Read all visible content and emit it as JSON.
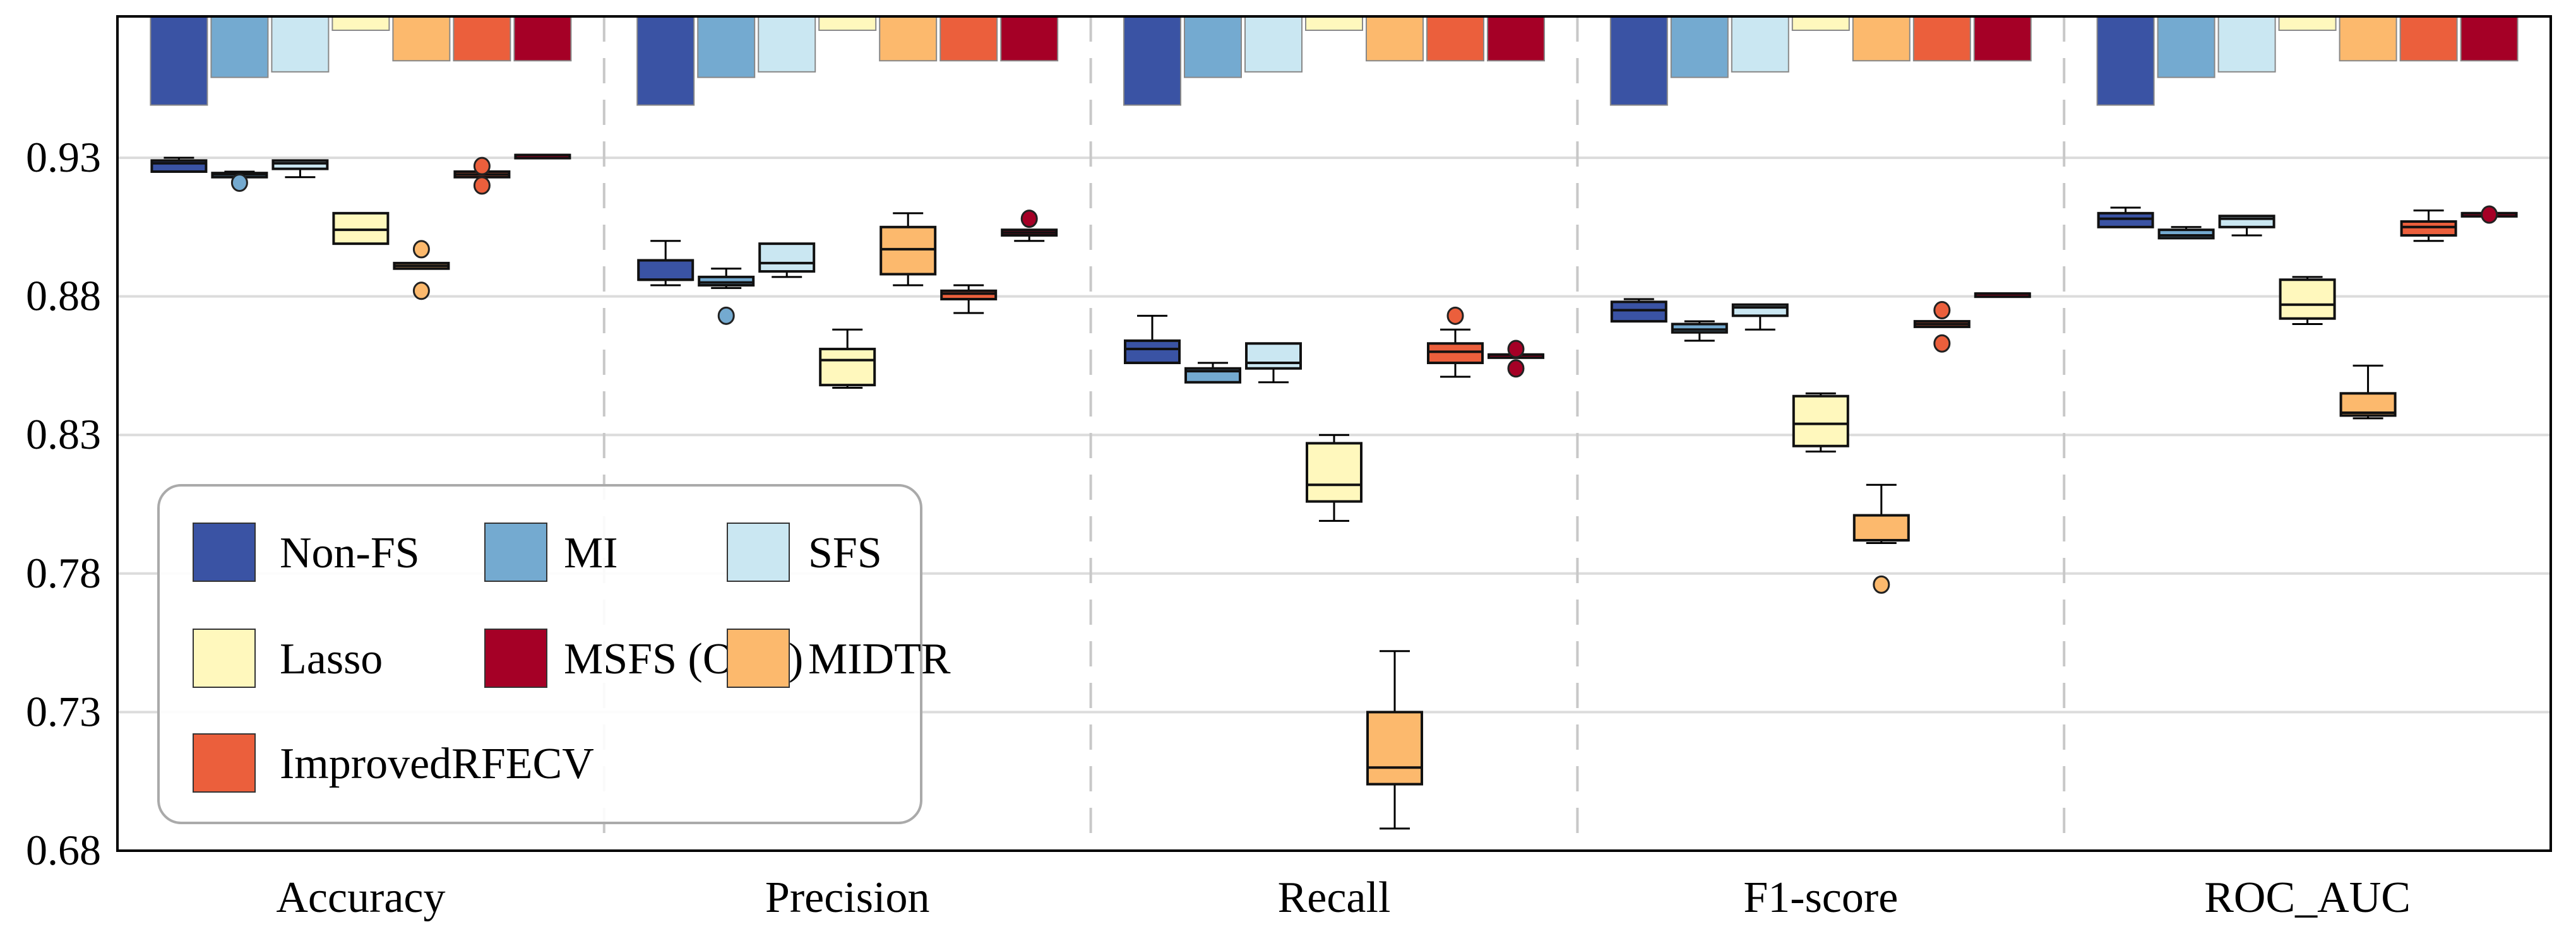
{
  "chart_data": {
    "type": "box",
    "title": "",
    "xlabel": "",
    "ylabel": "",
    "ylim": [
      0.68,
      0.981
    ],
    "yticks": [
      "0.68",
      "0.73",
      "0.78",
      "0.83",
      "0.88",
      "0.93"
    ],
    "grid": "horizontal",
    "legend_position": "bottom-left",
    "categories": [
      "Accuracy",
      "Precision",
      "Recall",
      "F1-score",
      "ROC_AUC"
    ],
    "methods": [
      {
        "name": "Non-FS",
        "color": "#3a53a4"
      },
      {
        "name": "MI",
        "color": "#74aad0"
      },
      {
        "name": "SFS",
        "color": "#cae7f2"
      },
      {
        "name": "Lasso",
        "color": "#fff8bd"
      },
      {
        "name": "MIDTR",
        "color": "#fcb96d"
      },
      {
        "name": "ImprovedRFECV",
        "color": "#eb5f3c"
      },
      {
        "name": "MSFS (Ours)",
        "color": "#a50026"
      }
    ],
    "legend_order": [
      0,
      1,
      2,
      3,
      6,
      4,
      5
    ],
    "top_bars_bottom_values": [
      0.949,
      0.959,
      0.961,
      0.976,
      0.965,
      0.965,
      0.965
    ],
    "boxes": [
      [
        {
          "min": 0.925,
          "q1": 0.925,
          "median": 0.928,
          "q3": 0.929,
          "max": 0.93,
          "outliers": []
        },
        {
          "min": 0.923,
          "q1": 0.923,
          "median": 0.924,
          "q3": 0.9245,
          "max": 0.925,
          "outliers": [
            0.921
          ]
        },
        {
          "min": 0.923,
          "q1": 0.926,
          "median": 0.928,
          "q3": 0.929,
          "max": 0.929,
          "outliers": []
        },
        {
          "min": 0.899,
          "q1": 0.899,
          "median": 0.904,
          "q3": 0.91,
          "max": 0.91,
          "outliers": []
        },
        {
          "min": 0.89,
          "q1": 0.89,
          "median": 0.891,
          "q3": 0.892,
          "max": 0.892,
          "outliers": [
            0.897,
            0.882
          ]
        },
        {
          "min": 0.923,
          "q1": 0.923,
          "median": 0.924,
          "q3": 0.925,
          "max": 0.925,
          "outliers": [
            0.927,
            0.92
          ]
        },
        {
          "min": 0.931,
          "q1": 0.931,
          "median": 0.931,
          "q3": 0.931,
          "max": 0.931,
          "outliers": []
        }
      ],
      [
        {
          "min": 0.884,
          "q1": 0.886,
          "median": 0.886,
          "q3": 0.893,
          "max": 0.9,
          "outliers": []
        },
        {
          "min": 0.883,
          "q1": 0.884,
          "median": 0.885,
          "q3": 0.887,
          "max": 0.89,
          "outliers": [
            0.873
          ]
        },
        {
          "min": 0.887,
          "q1": 0.889,
          "median": 0.892,
          "q3": 0.899,
          "max": 0.899,
          "outliers": []
        },
        {
          "min": 0.847,
          "q1": 0.848,
          "median": 0.857,
          "q3": 0.861,
          "max": 0.868,
          "outliers": []
        },
        {
          "min": 0.884,
          "q1": 0.888,
          "median": 0.897,
          "q3": 0.905,
          "max": 0.91,
          "outliers": []
        },
        {
          "min": 0.874,
          "q1": 0.879,
          "median": 0.881,
          "q3": 0.882,
          "max": 0.884,
          "outliers": []
        },
        {
          "min": 0.9,
          "q1": 0.902,
          "median": 0.903,
          "q3": 0.904,
          "max": 0.904,
          "outliers": [
            0.908
          ]
        }
      ],
      [
        {
          "min": 0.856,
          "q1": 0.856,
          "median": 0.861,
          "q3": 0.864,
          "max": 0.873,
          "outliers": []
        },
        {
          "min": 0.849,
          "q1": 0.849,
          "median": 0.853,
          "q3": 0.854,
          "max": 0.856,
          "outliers": []
        },
        {
          "min": 0.849,
          "q1": 0.854,
          "median": 0.856,
          "q3": 0.863,
          "max": 0.863,
          "outliers": []
        },
        {
          "min": 0.799,
          "q1": 0.806,
          "median": 0.812,
          "q3": 0.827,
          "max": 0.83,
          "outliers": []
        },
        {
          "min": 0.688,
          "q1": 0.704,
          "median": 0.71,
          "q3": 0.73,
          "max": 0.752,
          "outliers": []
        },
        {
          "min": 0.851,
          "q1": 0.856,
          "median": 0.86,
          "q3": 0.863,
          "max": 0.868,
          "outliers": [
            0.873
          ]
        },
        {
          "min": 0.859,
          "q1": 0.859,
          "median": 0.859,
          "q3": 0.859,
          "max": 0.859,
          "outliers": [
            0.861,
            0.854
          ]
        }
      ],
      [
        {
          "min": 0.871,
          "q1": 0.871,
          "median": 0.875,
          "q3": 0.878,
          "max": 0.879,
          "outliers": []
        },
        {
          "min": 0.864,
          "q1": 0.867,
          "median": 0.868,
          "q3": 0.87,
          "max": 0.871,
          "outliers": []
        },
        {
          "min": 0.868,
          "q1": 0.873,
          "median": 0.876,
          "q3": 0.877,
          "max": 0.877,
          "outliers": []
        },
        {
          "min": 0.824,
          "q1": 0.826,
          "median": 0.834,
          "q3": 0.844,
          "max": 0.845,
          "outliers": []
        },
        {
          "min": 0.791,
          "q1": 0.792,
          "median": 0.792,
          "q3": 0.801,
          "max": 0.812,
          "outliers": [
            0.776
          ]
        },
        {
          "min": 0.869,
          "q1": 0.869,
          "median": 0.87,
          "q3": 0.871,
          "max": 0.871,
          "outliers": [
            0.875,
            0.863
          ]
        },
        {
          "min": 0.881,
          "q1": 0.881,
          "median": 0.881,
          "q3": 0.881,
          "max": 0.881,
          "outliers": []
        }
      ],
      [
        {
          "min": 0.905,
          "q1": 0.905,
          "median": 0.908,
          "q3": 0.91,
          "max": 0.912,
          "outliers": []
        },
        {
          "min": 0.901,
          "q1": 0.901,
          "median": 0.902,
          "q3": 0.904,
          "max": 0.905,
          "outliers": []
        },
        {
          "min": 0.902,
          "q1": 0.905,
          "median": 0.908,
          "q3": 0.909,
          "max": 0.909,
          "outliers": []
        },
        {
          "min": 0.87,
          "q1": 0.872,
          "median": 0.877,
          "q3": 0.886,
          "max": 0.887,
          "outliers": []
        },
        {
          "min": 0.836,
          "q1": 0.837,
          "median": 0.838,
          "q3": 0.845,
          "max": 0.855,
          "outliers": []
        },
        {
          "min": 0.9,
          "q1": 0.902,
          "median": 0.905,
          "q3": 0.907,
          "max": 0.911,
          "outliers": []
        },
        {
          "min": 0.91,
          "q1": 0.91,
          "median": 0.91,
          "q3": 0.91,
          "max": 0.91,
          "outliers": [
            0.9095
          ]
        }
      ]
    ]
  }
}
